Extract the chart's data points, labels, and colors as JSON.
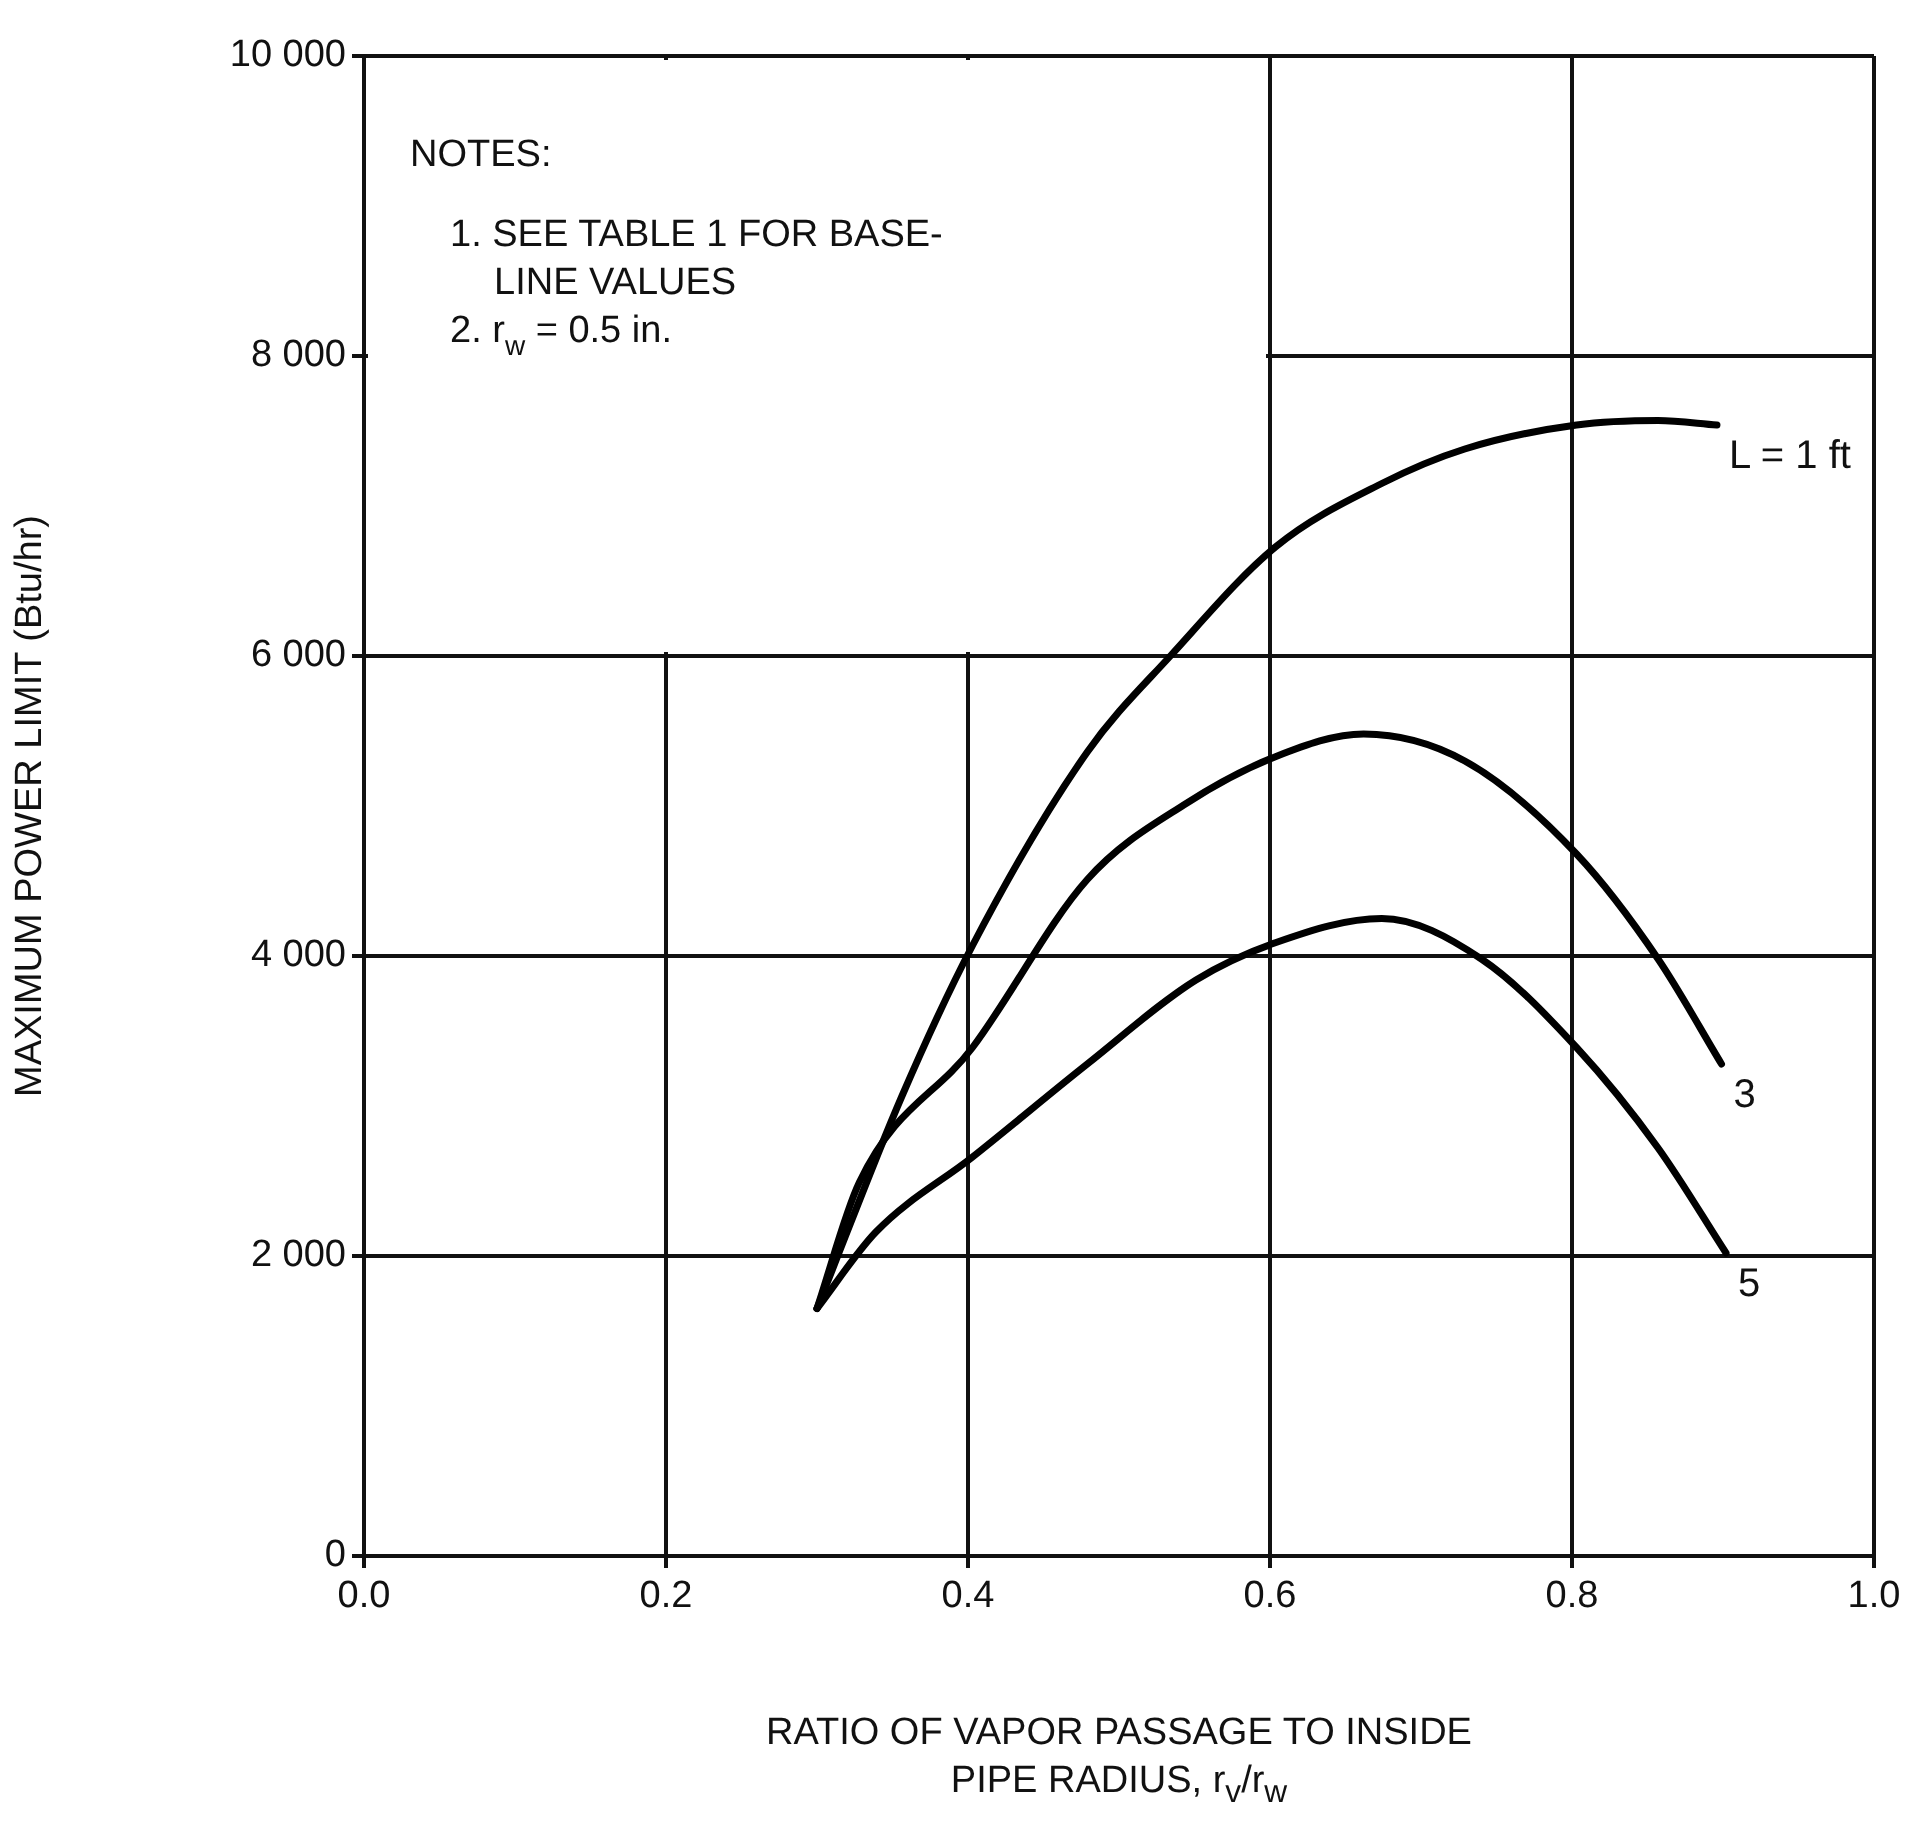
{
  "chart_data": {
    "type": "line",
    "xlabel": "RATIO OF VAPOR PASSAGE TO INSIDE PIPE RADIUS, r$_{v}$/r$_{w}$",
    "ylabel": "MAXIMUM POWER LIMIT (Btu/hr)",
    "annotations": [
      "NOTES:",
      "1. SEE TABLE 1 FOR BASE-\nLINE VALUES",
      "2. r$_{w}$ = 0.5 in."
    ],
    "xlim": [
      0,
      1
    ],
    "xticks": [
      {
        "value": 0,
        "label": "0.0"
      },
      {
        "value": 0.2,
        "label": "0.2"
      },
      {
        "value": 0.4,
        "label": "0.4"
      },
      {
        "value": 0.6,
        "label": "0.6"
      },
      {
        "value": 0.8,
        "label": "0.8"
      },
      {
        "value": 1,
        "label": "1.0"
      }
    ],
    "ylim": [
      0,
      10000
    ],
    "yticks": [
      0,
      {
        "value": 2000,
        "label": "2 000"
      },
      {
        "value": 4000,
        "label": "4 000"
      },
      {
        "value": 6000,
        "label": "6 000"
      },
      {
        "value": 8000,
        "label": "8 000"
      },
      {
        "value": 10000,
        "label": "10 000"
      }
    ],
    "grid": true,
    "legend": false,
    "marker": "none",
    "line_style": "solid",
    "series": [
      {
        "name": "L = 1 ft",
        "color": "#000000",
        "x": [
          0.3,
          0.356,
          0.403,
          0.479,
          0.534,
          0.604,
          0.674,
          0.729,
          0.803,
          0.857,
          0.896
        ],
        "values": [
          1650,
          3060,
          4070,
          5360,
          6000,
          6730,
          7150,
          7380,
          7540,
          7570,
          7540
        ]
      },
      {
        "name": "3",
        "color": "#000000",
        "x": [
          0.3,
          0.328,
          0.403,
          0.479,
          0.545,
          0.604,
          0.662,
          0.729,
          0.803,
          0.857,
          0.899
        ],
        "values": [
          1650,
          2490,
          3390,
          4510,
          5020,
          5330,
          5480,
          5300,
          4680,
          3980,
          3280
        ]
      },
      {
        "name": "5",
        "color": "#000000",
        "x": [
          0.3,
          0.339,
          0.403,
          0.479,
          0.551,
          0.604,
          0.674,
          0.74,
          0.803,
          0.857,
          0.902
        ],
        "values": [
          1650,
          2160,
          2660,
          3280,
          3840,
          4090,
          4250,
          3980,
          3390,
          2720,
          2020
        ]
      }
    ]
  }
}
